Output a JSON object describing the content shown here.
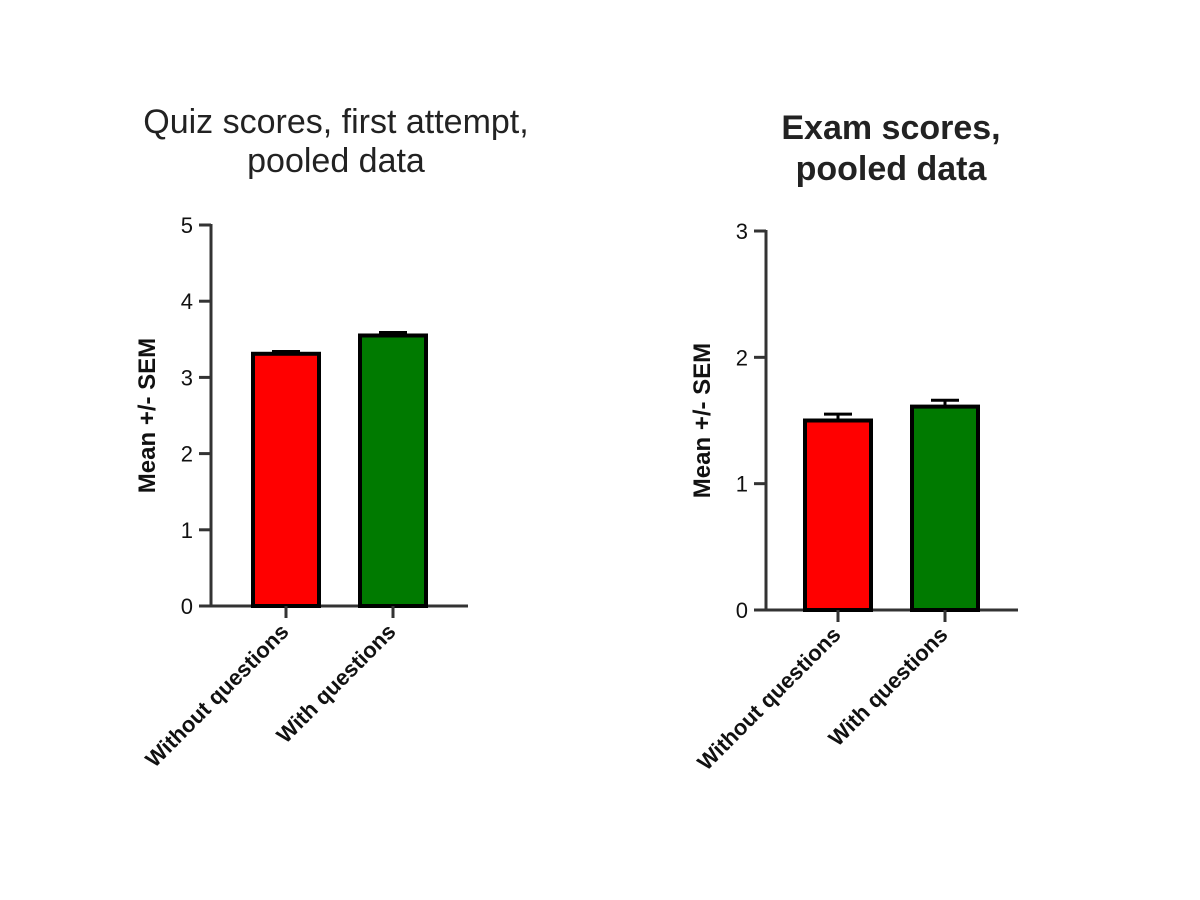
{
  "chart_data": [
    {
      "type": "bar",
      "title_lines": [
        "Quiz scores, first attempt,",
        "pooled data"
      ],
      "xlabel": "",
      "ylabel": "Mean +/- SEM",
      "ylim": [
        0,
        5
      ],
      "yticks": [
        0,
        1,
        2,
        3,
        4,
        5
      ],
      "categories": [
        "Without questions",
        "With questions"
      ],
      "values": [
        3.31,
        3.55
      ],
      "errors": [
        0.03,
        0.04
      ],
      "colors": [
        "#ff0000",
        "#007a00"
      ],
      "grid": false
    },
    {
      "type": "bar",
      "title_lines": [
        "Exam scores,",
        "pooled data"
      ],
      "xlabel": "",
      "ylabel": "Mean +/- SEM",
      "ylim": [
        0,
        3
      ],
      "yticks": [
        0,
        1,
        2,
        3
      ],
      "categories": [
        "Without questions",
        "With questions"
      ],
      "values": [
        1.5,
        1.61
      ],
      "errors": [
        0.05,
        0.05
      ],
      "colors": [
        "#ff0000",
        "#007a00"
      ],
      "grid": false
    }
  ]
}
